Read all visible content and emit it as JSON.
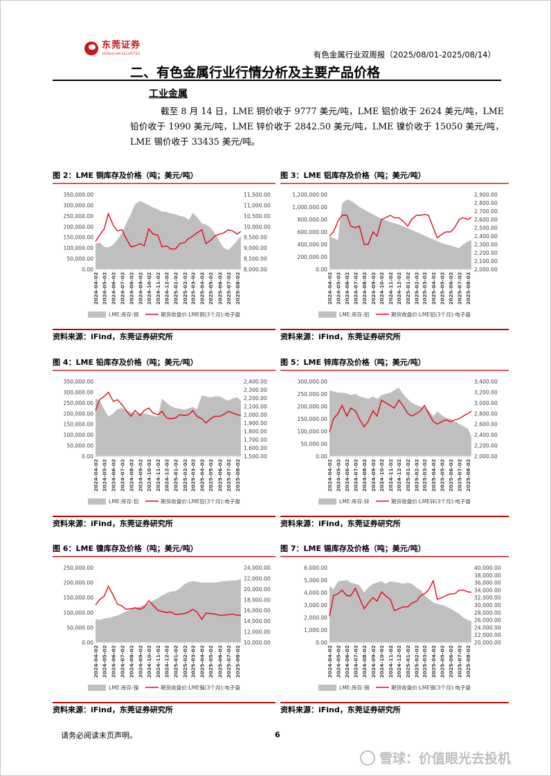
{
  "header": {
    "logo_cn": "东莞证券",
    "logo_en": "DONGGUAN SECURITIES",
    "report_title": "有色金属行业双周报（2025/08/01-2025/08/14）"
  },
  "section_title": "二、有色金属行业行情分析及主要产品价格",
  "subsection_title": "工业金属",
  "paragraph": "截至 8 月 14 日，LME 铜价收于 9777 美元/吨，LME 铝价收于 2624 美元/吨，LME 铅价收于 1990 美元/吨，LME 锌价收于 2842.50 美元/吨，LME 镍价收于 15050 美元/吨，LME 锡价收于 33435 美元/吨。",
  "footer": {
    "note": "请务必阅读末页声明。",
    "page_number": "6"
  },
  "watermark": "雪球：价值眼光去投机",
  "colors": {
    "price_line": "#e30613",
    "inventory_area": "#bfbfbf",
    "rule_red": "#d9534f",
    "brand": "#c8161d"
  },
  "chart_common": {
    "x_ticks": [
      "2024-04-02",
      "2024-05-02",
      "2024-06-02",
      "2024-07-02",
      "2024-08-02",
      "2024-09-02",
      "2024-10-02",
      "2024-11-02",
      "2024-12-02",
      "2025-01-02",
      "2025-02-02",
      "2025-03-02",
      "2025-04-02",
      "2025-05-02",
      "2025-06-02",
      "2025-07-02",
      "2025-08-02"
    ],
    "x": [
      "2024-04-02",
      "2024-04-16",
      "2024-05-02",
      "2024-05-16",
      "2024-06-02",
      "2024-06-16",
      "2024-07-02",
      "2024-07-16",
      "2024-08-02",
      "2024-08-16",
      "2024-09-02",
      "2024-09-16",
      "2024-10-02",
      "2024-10-16",
      "2024-11-02",
      "2024-11-16",
      "2024-12-02",
      "2024-12-16",
      "2025-01-02",
      "2025-01-16",
      "2025-02-02",
      "2025-02-16",
      "2025-03-02",
      "2025-03-16",
      "2025-04-02",
      "2025-04-16",
      "2025-05-02",
      "2025-05-16",
      "2025-06-02",
      "2025-06-16",
      "2025-07-02",
      "2025-07-16",
      "2025-08-02",
      "2025-08-14"
    ],
    "source": "资料来源：iFind，东莞证券研究所"
  },
  "chart_data": [
    {
      "type": "area+line",
      "title": "图 2：LME 铜库存及价格（吨；美元/吨）",
      "series": [
        {
          "name": "LME:库存:铜",
          "axis": "left",
          "kind": "area",
          "values": [
            120000,
            125000,
            105000,
            103000,
            115000,
            140000,
            170000,
            215000,
            260000,
            305000,
            320000,
            310000,
            300000,
            290000,
            280000,
            270000,
            268000,
            262000,
            258000,
            250000,
            245000,
            230000,
            265000,
            245000,
            215000,
            210000,
            195000,
            170000,
            130000,
            100000,
            90000,
            110000,
            135000,
            157000
          ]
        },
        {
          "name": "期货收盘价:LME铜(3个月):电子盘",
          "axis": "right",
          "kind": "line",
          "values": [
            9300,
            9600,
            9900,
            10600,
            10050,
            9800,
            9850,
            9450,
            9050,
            9100,
            9200,
            9100,
            9900,
            9650,
            9600,
            9050,
            9100,
            8950,
            8950,
            9200,
            9250,
            9450,
            9550,
            9700,
            9850,
            9200,
            9350,
            9550,
            9650,
            9700,
            9850,
            9800,
            9650,
            9777
          ]
        }
      ],
      "ylim_left": [
        0,
        350000
      ],
      "ystep_left": 50000,
      "ylim_right": [
        8000,
        11500
      ],
      "ystep_right": 500
    },
    {
      "type": "area+line",
      "title": "图 3：LME 铝库存及价格（吨；美元/吨）",
      "series": [
        {
          "name": "LME:库存:铝",
          "axis": "left",
          "kind": "area",
          "values": [
            530000,
            500000,
            470000,
            1050000,
            1120000,
            1100000,
            1050000,
            1000000,
            960000,
            920000,
            880000,
            850000,
            810000,
            790000,
            760000,
            740000,
            720000,
            690000,
            660000,
            630000,
            600000,
            570000,
            540000,
            510000,
            480000,
            450000,
            420000,
            400000,
            380000,
            360000,
            340000,
            400000,
            450000,
            470000
          ]
        },
        {
          "name": "期货收盘价:LME铝(3个月):电子盘",
          "axis": "right",
          "kind": "line",
          "values": [
            2400,
            2450,
            2580,
            2650,
            2650,
            2520,
            2500,
            2520,
            2300,
            2300,
            2450,
            2400,
            2600,
            2620,
            2650,
            2620,
            2620,
            2580,
            2520,
            2600,
            2650,
            2650,
            2660,
            2650,
            2500,
            2380,
            2420,
            2450,
            2450,
            2500,
            2600,
            2620,
            2600,
            2624
          ]
        }
      ],
      "ylim_left": [
        0,
        1200000
      ],
      "ystep_left": 200000,
      "ylim_right": [
        2000,
        2900
      ],
      "ystep_right": 100
    },
    {
      "type": "area+line",
      "title": "图 4：LME 铅库存及价格（吨；美元/吨）",
      "series": [
        {
          "name": "LME:库存:铅",
          "axis": "left",
          "kind": "area",
          "values": [
            270000,
            260000,
            220000,
            185000,
            200000,
            220000,
            225000,
            215000,
            205000,
            200000,
            200000,
            200000,
            195000,
            190000,
            185000,
            270000,
            250000,
            235000,
            225000,
            222000,
            218000,
            225000,
            230000,
            220000,
            285000,
            280000,
            275000,
            280000,
            280000,
            270000,
            260000,
            270000,
            275000,
            260000
          ]
        },
        {
          "name": "期货收盘价:LME铅(3个月):电子盘",
          "axis": "right",
          "kind": "line",
          "values": [
            2050,
            2180,
            2220,
            2270,
            2160,
            2180,
            2120,
            2050,
            1980,
            2050,
            1990,
            2050,
            2080,
            2020,
            2000,
            2040,
            1960,
            1950,
            1960,
            2000,
            1990,
            2000,
            2050,
            1980,
            1950,
            1900,
            1950,
            1980,
            1980,
            2000,
            2040,
            2020,
            2000,
            1990
          ]
        }
      ],
      "ylim_left": [
        0,
        350000
      ],
      "ystep_left": 50000,
      "ylim_right": [
        1500,
        2400
      ],
      "ystep_right": 100
    },
    {
      "type": "area+line",
      "title": "图 5：LME 锌库存及价格（吨；美元/吨）",
      "series": [
        {
          "name": "LME:库存:锌",
          "axis": "left",
          "kind": "area",
          "values": [
            265000,
            260000,
            255000,
            255000,
            252000,
            245000,
            250000,
            240000,
            235000,
            230000,
            240000,
            230000,
            245000,
            250000,
            255000,
            265000,
            275000,
            250000,
            230000,
            215000,
            205000,
            200000,
            195000,
            185000,
            160000,
            180000,
            165000,
            155000,
            150000,
            140000,
            130000,
            120000,
            110000,
            78000
          ]
        },
        {
          "name": "期货收盘价:LME锌(3个月):电子盘",
          "axis": "right",
          "kind": "line",
          "values": [
            2450,
            2700,
            2800,
            2950,
            2750,
            2900,
            2850,
            2700,
            2550,
            2650,
            2850,
            2750,
            3050,
            3000,
            2950,
            2900,
            3050,
            2950,
            2800,
            2750,
            2800,
            2850,
            2950,
            2800,
            2650,
            2600,
            2650,
            2680,
            2650,
            2680,
            2700,
            2750,
            2800,
            2842.5
          ]
        }
      ],
      "ylim_left": [
        0,
        300000
      ],
      "ystep_left": 50000,
      "ylim_right": [
        2000,
        3400
      ],
      "ystep_right": 200
    },
    {
      "type": "area+line",
      "title": "图 6：LME 镍库存及价格（吨；美元/吨）",
      "series": [
        {
          "name": "LME:库存:镍",
          "axis": "left",
          "kind": "area",
          "values": [
            78000,
            75000,
            80000,
            82000,
            86000,
            90000,
            97000,
            103000,
            110000,
            115000,
            120000,
            125000,
            130000,
            140000,
            148000,
            157000,
            165000,
            170000,
            172000,
            180000,
            195000,
            202000,
            205000,
            203000,
            200000,
            200000,
            200000,
            200000,
            202000,
            205000,
            205000,
            207000,
            208000,
            212000
          ]
        },
        {
          "name": "期货收盘价:LME镍(3个月):电子盘",
          "axis": "right",
          "kind": "line",
          "values": [
            17000,
            18000,
            18700,
            20500,
            18800,
            17200,
            16800,
            16200,
            16300,
            16500,
            16200,
            16600,
            17800,
            17000,
            16000,
            15800,
            15600,
            15700,
            15200,
            15300,
            15400,
            15700,
            16200,
            15700,
            14300,
            15500,
            15400,
            15300,
            15100,
            15100,
            15200,
            15300,
            15100,
            15050
          ]
        }
      ],
      "ylim_left": [
        0,
        250000
      ],
      "ystep_left": 50000,
      "ylim_right": [
        10000,
        24000
      ],
      "ystep_right": 2000
    },
    {
      "type": "area+line",
      "title": "图 7：LME 锡库存及价格（吨；美元/吨）",
      "series": [
        {
          "name": "LME:库存:锡",
          "axis": "left",
          "kind": "area",
          "values": [
            4500,
            4300,
            4900,
            4950,
            5000,
            4800,
            4700,
            4600,
            4000,
            4400,
            4700,
            4800,
            4900,
            4700,
            4900,
            4850,
            4800,
            4700,
            4800,
            4700,
            4400,
            4200,
            3800,
            3500,
            3200,
            3100,
            3000,
            2900,
            2700,
            2500,
            2300,
            2000,
            1800,
            1700
          ]
        },
        {
          "name": "期货收盘价:LME锡(3个月):电子盘",
          "axis": "right",
          "kind": "line",
          "values": [
            27000,
            32500,
            33000,
            34000,
            32500,
            32500,
            34500,
            32000,
            29000,
            30500,
            32000,
            31000,
            33500,
            32500,
            31500,
            28500,
            29000,
            29500,
            29500,
            30500,
            31000,
            32500,
            33000,
            34000,
            36500,
            31500,
            32000,
            32500,
            33000,
            33000,
            34000,
            34000,
            33500,
            33435
          ]
        }
      ],
      "ylim_left": [
        0,
        6000
      ],
      "ystep_left": 1000,
      "ylim_right": [
        20000,
        40000
      ],
      "ystep_right": 2000
    }
  ]
}
